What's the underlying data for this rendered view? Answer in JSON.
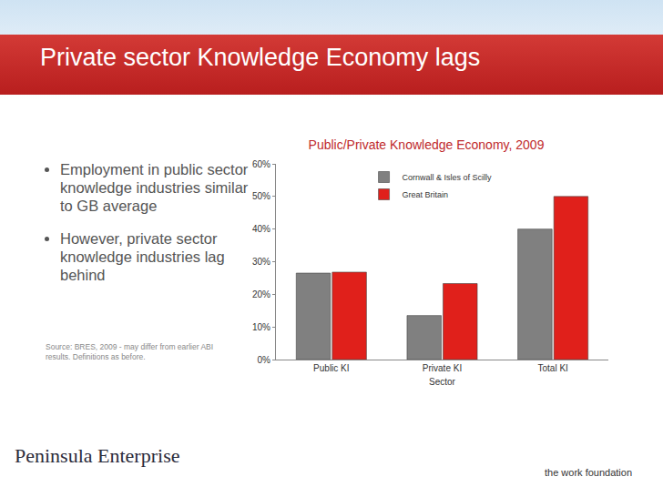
{
  "slide": {
    "heading": "Private sector Knowledge Economy lags",
    "bullets": [
      "Employment in public sector knowledge industries similar to GB average",
      "However, private sector knowledge industries lag behind"
    ],
    "source": "Source: BRES, 2009 - may differ from earlier ABI results. Definitions as before.",
    "logos": [
      "Peninsula Enterprise",
      "the work foundation"
    ]
  },
  "chart_data": {
    "type": "bar",
    "title": "Public/Private Knowledge Economy, 2009",
    "x_label": "Sector",
    "categories": [
      "Public KI",
      "Private KI",
      "Total KI"
    ],
    "series": [
      {
        "name": "Cornwall & Isles of Scilly",
        "color": "#808080",
        "values": [
          26.5,
          13.5,
          40
        ]
      },
      {
        "name": "Great Britain",
        "color": "#e0201b",
        "values": [
          26.8,
          23.3,
          50
        ]
      }
    ],
    "ylim": [
      0,
      60
    ],
    "yticks": [
      {
        "value": 0,
        "label": "0%"
      },
      {
        "value": 10,
        "label": "10%"
      },
      {
        "value": 20,
        "label": "20%"
      },
      {
        "value": 30,
        "label": "30%"
      },
      {
        "value": 40,
        "label": "40%"
      },
      {
        "value": 50,
        "label": "50%"
      },
      {
        "value": 60,
        "label": "60%"
      }
    ],
    "grid": false,
    "legend": "top"
  }
}
